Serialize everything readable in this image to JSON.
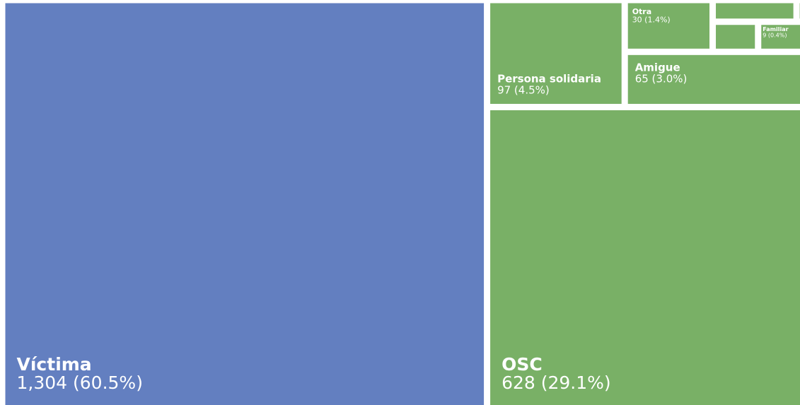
{
  "chart_data": {
    "type": "treemap",
    "categories": [
      "Víctima",
      "OSC",
      "Persona solidaria",
      "Amigue",
      "Otra",
      "Familiar",
      null,
      null,
      null
    ],
    "values": [
      1304,
      628,
      97,
      65,
      30,
      9,
      12,
      1,
      9
    ],
    "value_labels": [
      "1,304 (60.5%)",
      "628 (29.1%)",
      "97 (4.5%)",
      "65 (3.0%)",
      "30 (1.4%)",
      "9 (0.4%)",
      null,
      null,
      null
    ],
    "colors": [
      "#637fc0",
      "#79b066",
      "#79b066",
      "#79b066",
      "#79b066",
      "#79b066",
      "#79b066",
      "#79b066",
      "#79b066"
    ]
  }
}
